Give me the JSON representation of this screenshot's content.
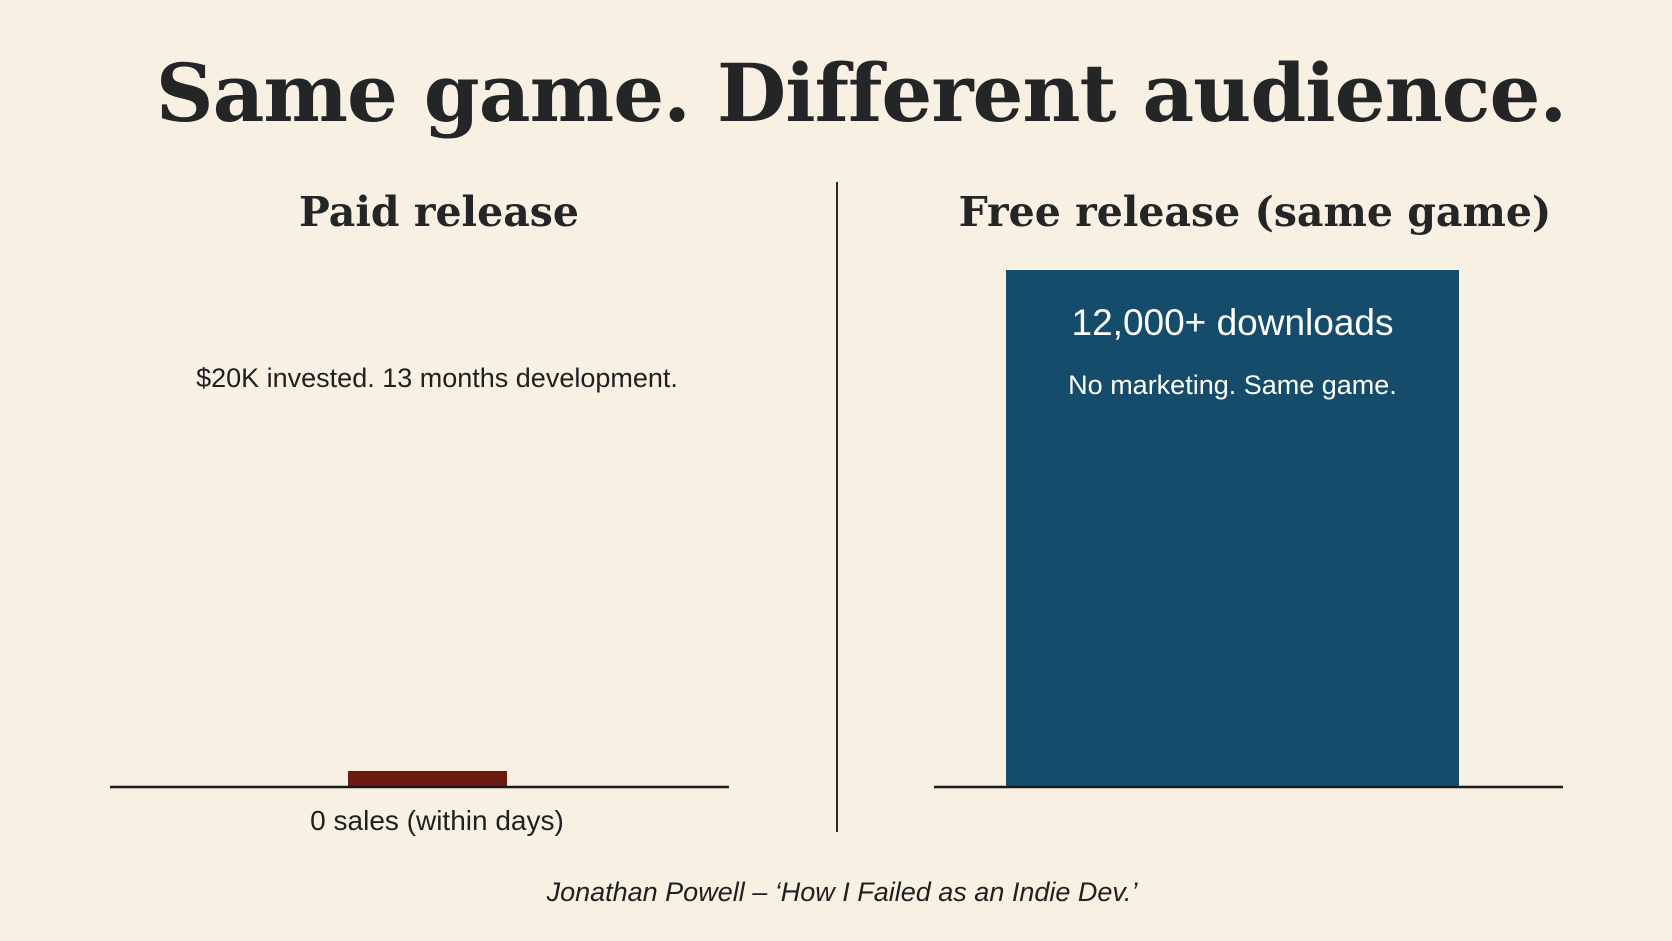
{
  "headline": "Same game. Different audience.",
  "source": "Jonathan Powell – ‘How I Failed as an Indie Dev.’",
  "chart_data": {
    "type": "bar",
    "categories": [
      "Paid release",
      "Free release (same game)"
    ],
    "values": [
      0,
      12000
    ],
    "ylim": [
      0,
      12000
    ],
    "title": "Same game. Different audience.",
    "xlabel": "",
    "ylabel": "",
    "grid": false,
    "colors": {
      "paid": "#6b1a12",
      "free": "#154c6b",
      "baseline": "#1a1a1a",
      "background": "#f7f0e3"
    },
    "panels": [
      {
        "title": "Paid release",
        "note": "$20K invested. 13 months development.",
        "bar_value": 0,
        "value_label": "0 sales (within days)"
      },
      {
        "title": "Free release (same game)",
        "bar_value": 12000,
        "value_label": "12,000+ downloads",
        "sub_label": "No marketing. Same game."
      }
    ]
  }
}
